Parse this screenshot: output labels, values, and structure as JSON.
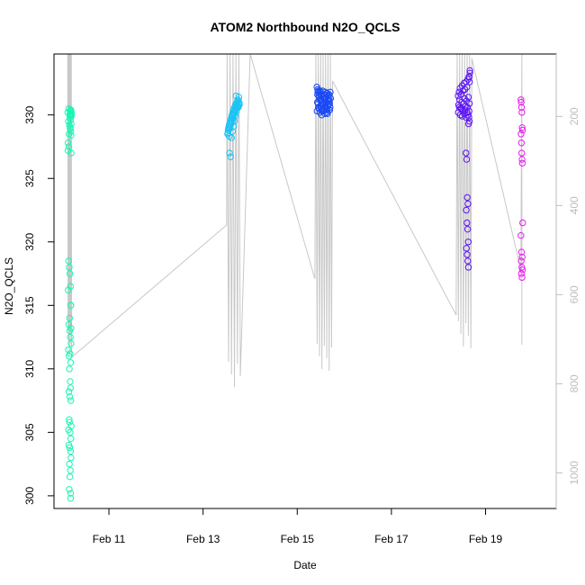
{
  "chart_data": {
    "type": "scatter",
    "title": "ATOM2 Northbound N2O_QCLS",
    "xlabel": "Date",
    "ylabel": "N2O_QCLS",
    "xlim": [
      "2017-02-09T20:00",
      "2017-02-20T12:00"
    ],
    "ylim": [
      299.0,
      334.8
    ],
    "y_ticks": [
      300,
      305,
      310,
      315,
      320,
      325,
      330
    ],
    "x_ticks": [
      {
        "label": "Feb 11",
        "date": "2017-02-11"
      },
      {
        "label": "Feb 13",
        "date": "2017-02-13"
      },
      {
        "label": "Feb 15",
        "date": "2017-02-15"
      },
      {
        "label": "Feb 17",
        "date": "2017-02-17"
      },
      {
        "label": "Feb 19",
        "date": "2017-02-19"
      }
    ],
    "secondary_axis": {
      "label_color": "#bdbdbd",
      "range_top": 60,
      "range_bottom": 1080,
      "ticks": [
        200,
        400,
        600,
        800,
        1000
      ],
      "line_color": "#c8c8c8"
    },
    "grid": false,
    "series": [
      {
        "color": "#19f5b3",
        "x": [
          "2017-02-10T03:00",
          "2017-02-10T03:30",
          "2017-02-10T04:00",
          "2017-02-10T04:10",
          "2017-02-10T04:20",
          "2017-02-10T04:30",
          "2017-02-10T04:40",
          "2017-02-10T04:50",
          "2017-02-10T03:20",
          "2017-02-10T03:50",
          "2017-02-10T04:15",
          "2017-02-10T03:40",
          "2017-02-10T03:10",
          "2017-02-10T03:35",
          "2017-02-10T04:45",
          "2017-02-10T03:05",
          "2017-02-10T03:25",
          "2017-02-10T03:45",
          "2017-02-10T04:05",
          "2017-02-10T04:25",
          "2017-02-10T03:15",
          "2017-02-10T04:35",
          "2017-02-10T03:55",
          "2017-02-10T03:30",
          "2017-02-10T04:00",
          "2017-02-10T04:20",
          "2017-02-10T04:40",
          "2017-02-10T03:20",
          "2017-02-10T04:10",
          "2017-02-10T03:40",
          "2017-02-10T04:30",
          "2017-02-10T03:50",
          "2017-02-10T04:15",
          "2017-02-10T04:25",
          "2017-02-10T03:35",
          "2017-02-10T04:05",
          "2017-02-10T04:35",
          "2017-02-10T03:45",
          "2017-02-10T04:45",
          "2017-02-10T03:55",
          "2017-02-10T03:25",
          "2017-02-10T04:15",
          "2017-02-10T04:35",
          "2017-02-10T03:35",
          "2017-02-10T04:00",
          "2017-02-10T04:25",
          "2017-02-10T04:40",
          "2017-02-10T03:50",
          "2017-02-10T04:20",
          "2017-02-10T04:05",
          "2017-02-10T03:45",
          "2017-02-10T04:30",
          "2017-02-10T04:30",
          "2017-02-10T04:10",
          "2017-02-10T04:50",
          "2017-02-10T04:35",
          "2017-02-10T04:25",
          "2017-02-10T04:45",
          "2017-02-10T04:15",
          "2017-02-10T04:30",
          "2017-02-10T04:40",
          "2017-02-10T04:50",
          "2017-02-10T04:20",
          "2017-02-10T04:45",
          "2017-02-10T04:30",
          "2017-02-10T04:40"
        ],
        "y": [
          330.2,
          330.5,
          330.0,
          329.8,
          330.3,
          330.1,
          330.4,
          329.9,
          329.5,
          329.2,
          328.9,
          328.5,
          327.8,
          327.5,
          327.0,
          327.2,
          318.5,
          318.0,
          317.5,
          316.5,
          316.2,
          315.0,
          314.0,
          313.5,
          313.0,
          312.5,
          312.0,
          311.5,
          311.2,
          311.0,
          310.5,
          310.0,
          309.0,
          308.5,
          308.2,
          307.8,
          307.5,
          306.0,
          305.5,
          305.8,
          305.2,
          305.0,
          304.5,
          304.0,
          303.8,
          303.5,
          303.0,
          302.5,
          302.0,
          301.5,
          300.5,
          300.2,
          299.8,
          330.3,
          330.1,
          329.9,
          329.6,
          329.3,
          329.0,
          328.7,
          328.4,
          330.2,
          330.4,
          330.0,
          315.0,
          313.2
        ]
      },
      {
        "color": "#19c3f5",
        "x": [
          "2017-02-13T12:30",
          "2017-02-13T12:45",
          "2017-02-13T13:00",
          "2017-02-13T13:15",
          "2017-02-13T13:30",
          "2017-02-13T13:45",
          "2017-02-13T14:00",
          "2017-02-13T14:15",
          "2017-02-13T14:30",
          "2017-02-13T14:45",
          "2017-02-13T15:00",
          "2017-02-13T15:15",
          "2017-02-13T15:30",
          "2017-02-13T15:45",
          "2017-02-13T16:00",
          "2017-02-13T16:15",
          "2017-02-13T16:30",
          "2017-02-13T16:45",
          "2017-02-13T17:00",
          "2017-02-13T17:15",
          "2017-02-13T17:30",
          "2017-02-13T17:45",
          "2017-02-13T18:00",
          "2017-02-13T18:15",
          "2017-02-13T18:30",
          "2017-02-13T13:30",
          "2017-02-13T14:00",
          "2017-02-13T14:30",
          "2017-02-13T15:00",
          "2017-02-13T15:30",
          "2017-02-13T16:00",
          "2017-02-13T16:30",
          "2017-02-13T17:00",
          "2017-02-13T17:30",
          "2017-02-13T18:00",
          "2017-02-13T12:40",
          "2017-02-13T13:10",
          "2017-02-13T13:40",
          "2017-02-13T14:10",
          "2017-02-13T14:40",
          "2017-02-13T15:10",
          "2017-02-13T15:40",
          "2017-02-13T16:10",
          "2017-02-13T16:40",
          "2017-02-13T17:10",
          "2017-02-13T17:40",
          "2017-02-13T18:10",
          "2017-02-13T18:25",
          "2017-02-13T13:20",
          "2017-02-13T15:50",
          "2017-02-13T14:50",
          "2017-02-13T16:50"
        ],
        "y": [
          328.5,
          328.8,
          329.0,
          329.2,
          328.9,
          329.4,
          329.6,
          329.3,
          329.8,
          330.0,
          329.7,
          330.2,
          330.4,
          330.1,
          330.6,
          330.3,
          330.8,
          330.5,
          330.9,
          331.0,
          330.7,
          331.2,
          330.6,
          331.4,
          330.8,
          327.0,
          326.7,
          328.2,
          328.7,
          329.1,
          329.5,
          329.9,
          330.3,
          330.6,
          330.9,
          328.6,
          328.9,
          329.1,
          329.4,
          329.7,
          329.9,
          330.2,
          330.4,
          330.7,
          330.9,
          331.1,
          330.8,
          331.0,
          328.3,
          330.0,
          329.5,
          331.5
        ]
      },
      {
        "color": "#1a4af5",
        "x": [
          "2017-02-15T10:00",
          "2017-02-15T10:30",
          "2017-02-15T11:00",
          "2017-02-15T11:30",
          "2017-02-15T12:00",
          "2017-02-15T12:30",
          "2017-02-15T13:00",
          "2017-02-15T13:30",
          "2017-02-15T14:00",
          "2017-02-15T14:30",
          "2017-02-15T15:00",
          "2017-02-15T15:30",
          "2017-02-15T16:00",
          "2017-02-15T16:30",
          "2017-02-15T17:00",
          "2017-02-15T10:15",
          "2017-02-15T10:45",
          "2017-02-15T11:15",
          "2017-02-15T11:45",
          "2017-02-15T12:15",
          "2017-02-15T12:45",
          "2017-02-15T13:15",
          "2017-02-15T13:45",
          "2017-02-15T14:15",
          "2017-02-15T14:45",
          "2017-02-15T15:15",
          "2017-02-15T15:45",
          "2017-02-15T16:15",
          "2017-02-15T16:45",
          "2017-02-15T10:05",
          "2017-02-15T10:35",
          "2017-02-15T11:05",
          "2017-02-15T11:35",
          "2017-02-15T12:05",
          "2017-02-15T12:35",
          "2017-02-15T13:05",
          "2017-02-15T13:35",
          "2017-02-15T14:05",
          "2017-02-15T14:35",
          "2017-02-15T15:05",
          "2017-02-15T15:35",
          "2017-02-15T16:05",
          "2017-02-15T16:35",
          "2017-02-15T10:20",
          "2017-02-15T10:50",
          "2017-02-15T11:20",
          "2017-02-15T11:50",
          "2017-02-15T12:20",
          "2017-02-15T12:50",
          "2017-02-15T13:20",
          "2017-02-15T13:50",
          "2017-02-15T14:20",
          "2017-02-15T14:50",
          "2017-02-15T15:20",
          "2017-02-15T15:50",
          "2017-02-15T16:20",
          "2017-02-15T16:50",
          "2017-02-15T10:25",
          "2017-02-15T11:25",
          "2017-02-15T12:25",
          "2017-02-15T13:25",
          "2017-02-15T14:25",
          "2017-02-15T15:25",
          "2017-02-15T16:25"
        ],
        "y": [
          332.2,
          331.8,
          331.5,
          331.9,
          331.2,
          330.8,
          331.4,
          331.0,
          331.6,
          331.3,
          331.7,
          331.1,
          331.5,
          330.9,
          331.3,
          331.0,
          330.6,
          331.2,
          330.7,
          331.1,
          330.5,
          330.9,
          331.3,
          330.6,
          331.0,
          330.4,
          330.8,
          331.2,
          330.6,
          330.3,
          330.9,
          330.5,
          330.2,
          330.7,
          330.3,
          330.8,
          330.4,
          330.1,
          330.6,
          330.2,
          330.7,
          330.9,
          330.4,
          331.6,
          331.9,
          331.4,
          331.8,
          331.5,
          331.9,
          331.6,
          331.3,
          331.8,
          331.4,
          331.7,
          331.2,
          331.6,
          331.8,
          332.0,
          331.7,
          330.0,
          330.3,
          330.5,
          330.1,
          330.4
        ]
      },
      {
        "color": "#5b14f5",
        "x": [
          "2017-02-18T10:00",
          "2017-02-18T10:30",
          "2017-02-18T11:00",
          "2017-02-18T11:30",
          "2017-02-18T12:00",
          "2017-02-18T12:30",
          "2017-02-18T13:00",
          "2017-02-18T13:30",
          "2017-02-18T14:00",
          "2017-02-18T14:30",
          "2017-02-18T15:00",
          "2017-02-18T15:30",
          "2017-02-18T16:00",
          "2017-02-18T10:15",
          "2017-02-18T10:45",
          "2017-02-18T11:15",
          "2017-02-18T11:45",
          "2017-02-18T12:15",
          "2017-02-18T12:45",
          "2017-02-18T13:15",
          "2017-02-18T13:45",
          "2017-02-18T14:15",
          "2017-02-18T14:45",
          "2017-02-18T15:15",
          "2017-02-18T15:45",
          "2017-02-18T10:05",
          "2017-02-18T10:35",
          "2017-02-18T11:05",
          "2017-02-18T11:35",
          "2017-02-18T12:05",
          "2017-02-18T12:35",
          "2017-02-18T13:05",
          "2017-02-18T13:35",
          "2017-02-18T14:05",
          "2017-02-18T14:35",
          "2017-02-18T15:05",
          "2017-02-18T15:35",
          "2017-02-18T14:00",
          "2017-02-18T14:20",
          "2017-02-18T14:40",
          "2017-02-18T15:00",
          "2017-02-18T14:10",
          "2017-02-18T14:30",
          "2017-02-18T14:50",
          "2017-02-18T15:10",
          "2017-02-18T14:15",
          "2017-02-18T14:35",
          "2017-02-18T14:55",
          "2017-02-18T15:15",
          "2017-02-18T15:30",
          "2017-02-18T15:45",
          "2017-02-18T16:00",
          "2017-02-18T15:40",
          "2017-02-18T15:50",
          "2017-02-18T15:20"
        ],
        "y": [
          331.5,
          331.8,
          332.1,
          331.6,
          332.3,
          331.9,
          332.5,
          332.0,
          332.6,
          332.2,
          332.8,
          333.0,
          333.3,
          330.8,
          331.2,
          330.5,
          331.0,
          330.4,
          330.9,
          331.3,
          330.7,
          331.1,
          330.6,
          331.4,
          330.9,
          330.2,
          330.6,
          330.0,
          330.5,
          329.9,
          330.3,
          330.1,
          330.4,
          329.8,
          330.2,
          330.0,
          330.3,
          327.0,
          326.5,
          323.5,
          323.0,
          322.5,
          321.5,
          321.0,
          320.0,
          319.5,
          319.0,
          318.5,
          318.0,
          329.8,
          329.5,
          333.5,
          333.0,
          332.6,
          329.3
        ]
      },
      {
        "color": "#e81aee",
        "x": [
          "2017-02-19T18:00",
          "2017-02-19T18:10",
          "2017-02-19T18:20",
          "2017-02-19T18:30",
          "2017-02-19T18:40",
          "2017-02-19T18:50",
          "2017-02-19T18:05",
          "2017-02-19T18:15",
          "2017-02-19T18:25",
          "2017-02-19T18:35",
          "2017-02-19T18:45",
          "2017-02-19T18:55",
          "2017-02-19T18:00",
          "2017-02-19T18:20",
          "2017-02-19T18:40",
          "2017-02-19T18:10",
          "2017-02-19T18:30",
          "2017-02-19T18:50",
          "2017-02-19T18:15",
          "2017-02-19T18:35"
        ],
        "y": [
          331.2,
          331.0,
          330.6,
          330.2,
          329.0,
          328.8,
          328.5,
          327.8,
          327.0,
          326.5,
          326.2,
          321.5,
          320.5,
          319.2,
          318.8,
          318.5,
          318.0,
          317.8,
          317.5,
          317.2
        ]
      }
    ],
    "profile_line_color": "#c8c8c8"
  }
}
